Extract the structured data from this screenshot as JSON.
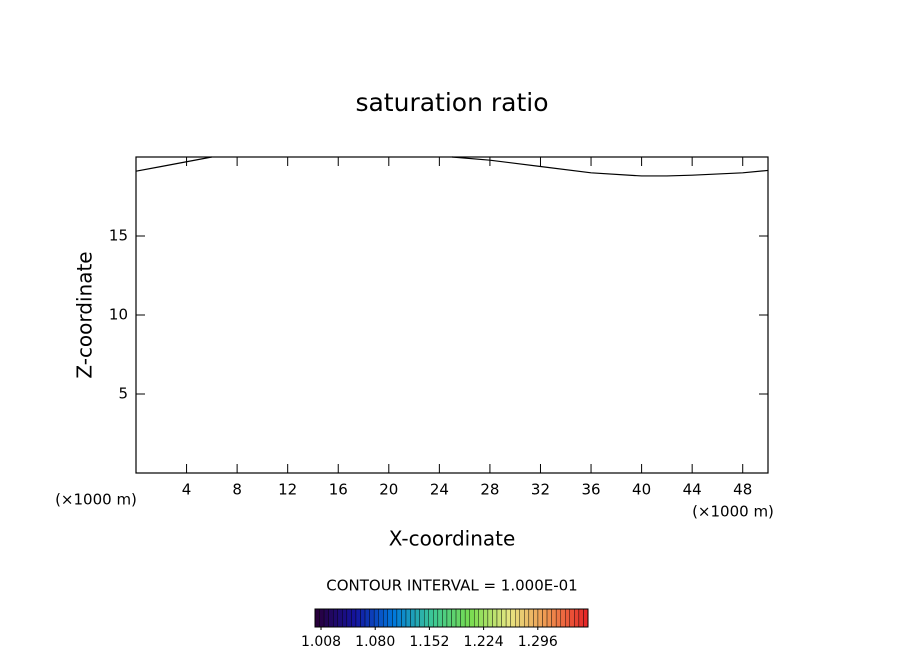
{
  "chart_data": {
    "type": "contour",
    "title": "saturation ratio",
    "xlabel": "X-coordinate",
    "ylabel": "Z-coordinate",
    "xlabel_unit": "(×1000 m)",
    "ylabel_unit": "(×1000 m)",
    "xlim": [
      0,
      50
    ],
    "xticks": [
      4,
      8,
      12,
      16,
      20,
      24,
      28,
      32,
      36,
      40,
      44,
      48
    ],
    "ylim": [
      0,
      20
    ],
    "yticks": [
      5,
      10,
      15
    ],
    "series": [
      {
        "name": "contour",
        "color": "#000000",
        "x": [
          0,
          2,
          4,
          6,
          16,
          25,
          28,
          32,
          36,
          40,
          42,
          44,
          48,
          50
        ],
        "values": [
          19.1,
          19.4,
          19.7,
          20,
          null,
          20,
          19.8,
          19.4,
          19.0,
          18.8,
          18.8,
          18.85,
          19.0,
          19.15
        ]
      }
    ],
    "colorbar": {
      "caption": "CONTOUR INTERVAL = 1.000E-01",
      "lim": [
        1.0,
        1.3627
      ],
      "ticks": [
        {
          "value": 1.008,
          "label": "1.008"
        },
        {
          "value": 1.08,
          "label": "1.080"
        },
        {
          "value": 1.152,
          "label": "1.152"
        },
        {
          "value": 1.224,
          "label": "1.224"
        },
        {
          "value": 1.296,
          "label": "1.296"
        }
      ]
    }
  }
}
